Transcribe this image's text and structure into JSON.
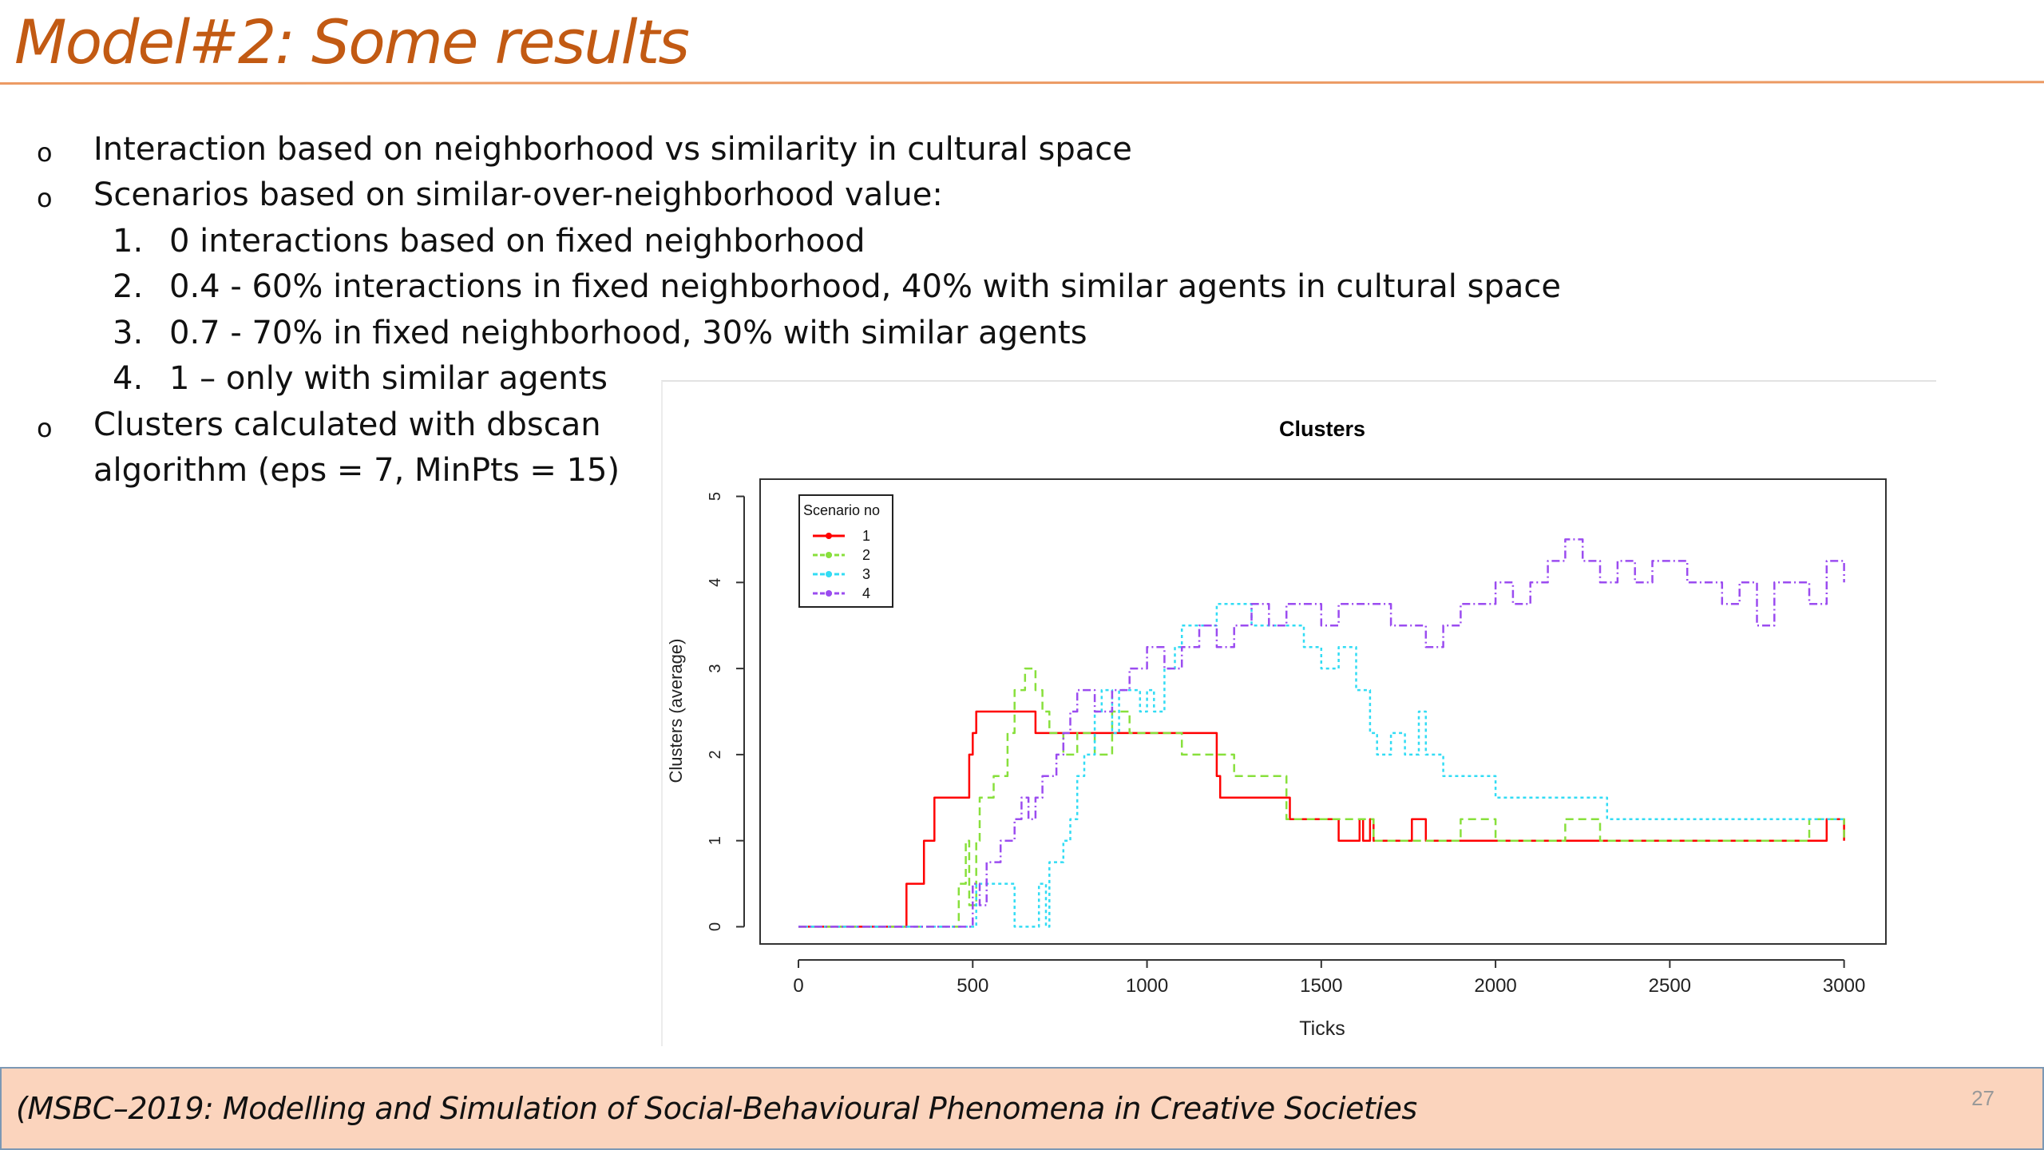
{
  "slide": {
    "title": "Model#2: Some results",
    "page_number": "27",
    "footer": "(MSBC–2019: Modelling and Simulation of Social-Behavioural Phenomena in Creative Societies"
  },
  "bullets": [
    {
      "marker": "o",
      "text": "Interaction based on neighborhood vs similarity in cultural space"
    },
    {
      "marker": "o",
      "text": "Scenarios based on similar-over-neighborhood value:"
    },
    {
      "marker": "1.",
      "text": "0  interactions based on fixed neighborhood"
    },
    {
      "marker": "2.",
      "text": "0.4 -  60% interactions in fixed neighborhood, 40% with similar agents in cultural space"
    },
    {
      "marker": "3.",
      "text": "0.7 -  70% in fixed neighborhood, 30% with similar agents"
    },
    {
      "marker": "4.",
      "text": "1 – only with similar agents"
    },
    {
      "marker": "o",
      "text": "Clusters calculated with dbscan"
    },
    {
      "marker": "",
      "text": "algorithm (eps = 7, MinPts = 15)"
    }
  ],
  "chart_data": {
    "type": "line",
    "title": "Clusters",
    "xlabel": "Ticks",
    "ylabel": "Clusters (average)",
    "xlim": [
      -110,
      3120
    ],
    "ylim": [
      -0.2,
      5.2
    ],
    "xticks": [
      "0",
      "500",
      "1000",
      "1500",
      "2000",
      "2500",
      "3000"
    ],
    "yticks": [
      "0",
      "1",
      "2",
      "3",
      "4",
      "5"
    ],
    "legend": {
      "title": "Scenario no",
      "position": "top-left"
    },
    "series": [
      {
        "name": "1",
        "color": "#ff0000",
        "dash": "none",
        "x": [
          0,
          300,
          310,
          350,
          360,
          380,
          390,
          400,
          460,
          480,
          490,
          500,
          510,
          590,
          620,
          660,
          680,
          800,
          850,
          900,
          1000,
          1100,
          1190,
          1200,
          1210,
          1400,
          1410,
          1500,
          1540,
          1550,
          1600,
          1610,
          1620,
          1630,
          1640,
          1650,
          1700,
          1750,
          1760,
          1800,
          1900,
          1950,
          2000,
          2100,
          2280,
          2400,
          2450,
          2500,
          2600,
          2700,
          2750,
          2760,
          2800,
          2900,
          2950,
          3000
        ],
        "y": [
          0,
          0,
          0.5,
          0.5,
          1,
          1,
          1.5,
          1.5,
          1.5,
          1.5,
          2,
          2.25,
          2.5,
          2.5,
          2.5,
          2.5,
          2.25,
          2.25,
          2.25,
          2.25,
          2.25,
          2.25,
          2.25,
          1.75,
          1.5,
          1.5,
          1.25,
          1.25,
          1.25,
          1.0,
          1.0,
          1.25,
          1.0,
          1.0,
          1.25,
          1.0,
          1.0,
          1.0,
          1.25,
          1.0,
          1.0,
          1.0,
          1.0,
          1.0,
          1.0,
          1.0,
          1.0,
          1.0,
          1.0,
          1.0,
          1.0,
          1.0,
          1.0,
          1.0,
          1.25,
          1.0
        ]
      },
      {
        "name": "2",
        "color": "#88e03c",
        "dash": "10 6",
        "x": [
          0,
          450,
          460,
          480,
          490,
          510,
          520,
          540,
          560,
          600,
          620,
          650,
          680,
          700,
          720,
          760,
          800,
          850,
          900,
          950,
          1000,
          1050,
          1100,
          1200,
          1250,
          1300,
          1350,
          1400,
          1450,
          1500,
          1550,
          1600,
          1650,
          1700,
          1750,
          1800,
          1850,
          1900,
          2000,
          2100,
          2200,
          2300,
          2400,
          2500,
          2600,
          2700,
          2800,
          2900,
          3000
        ],
        "y": [
          0,
          0,
          0.5,
          1.0,
          0.25,
          1.0,
          1.5,
          1.5,
          1.75,
          2.25,
          2.75,
          3.0,
          2.75,
          2.5,
          2.25,
          2.0,
          2.25,
          2.0,
          2.5,
          2.25,
          2.25,
          2.25,
          2.0,
          2.0,
          1.75,
          1.75,
          1.75,
          1.25,
          1.25,
          1.25,
          1.25,
          1.25,
          1.0,
          1.0,
          1.0,
          1.0,
          1.0,
          1.25,
          1.0,
          1.0,
          1.25,
          1.0,
          1.0,
          1.0,
          1.0,
          1.0,
          1.0,
          1.25,
          1.0
        ]
      },
      {
        "name": "3",
        "color": "#32dcf4",
        "dash": "4 4",
        "x": [
          0,
          500,
          510,
          540,
          560,
          600,
          620,
          680,
          690,
          710,
          720,
          760,
          780,
          800,
          820,
          850,
          870,
          900,
          920,
          950,
          980,
          1000,
          1020,
          1050,
          1080,
          1100,
          1150,
          1200,
          1250,
          1300,
          1350,
          1400,
          1450,
          1500,
          1550,
          1600,
          1640,
          1660,
          1700,
          1740,
          1780,
          1800,
          1850,
          1900,
          1950,
          2000,
          2100,
          2200,
          2300,
          2320,
          2340,
          2400,
          2500,
          2600,
          2700,
          2800,
          2900,
          3000
        ],
        "y": [
          0,
          0,
          0.5,
          0.5,
          0.5,
          0.5,
          0,
          0,
          0.5,
          0,
          0.75,
          1.0,
          1.25,
          1.75,
          2.0,
          2.5,
          2.75,
          2.25,
          2.75,
          2.75,
          2.5,
          2.75,
          2.5,
          3.0,
          3.25,
          3.5,
          3.5,
          3.75,
          3.75,
          3.5,
          3.5,
          3.5,
          3.25,
          3.0,
          3.25,
          2.75,
          2.25,
          2.0,
          2.25,
          2.0,
          2.5,
          2.0,
          1.75,
          1.75,
          1.75,
          1.5,
          1.5,
          1.5,
          1.5,
          1.25,
          1.25,
          1.25,
          1.25,
          1.25,
          1.25,
          1.25,
          1.25,
          1.25
        ]
      },
      {
        "name": "4",
        "color": "#9b4cf0",
        "dash": "10 4 2 4",
        "x": [
          0,
          490,
          500,
          520,
          540,
          580,
          600,
          620,
          640,
          660,
          680,
          700,
          740,
          760,
          780,
          800,
          850,
          900,
          950,
          1000,
          1050,
          1100,
          1150,
          1200,
          1250,
          1300,
          1350,
          1400,
          1450,
          1500,
          1550,
          1600,
          1650,
          1700,
          1750,
          1800,
          1850,
          1900,
          1950,
          2000,
          2050,
          2100,
          2150,
          2200,
          2250,
          2300,
          2350,
          2400,
          2450,
          2500,
          2550,
          2600,
          2650,
          2700,
          2750,
          2800,
          2850,
          2900,
          2950,
          3000
        ],
        "y": [
          0,
          0,
          0.5,
          0.25,
          0.75,
          1.0,
          1.0,
          1.25,
          1.5,
          1.25,
          1.5,
          1.75,
          2.0,
          2.25,
          2.5,
          2.75,
          2.5,
          2.75,
          3.0,
          3.25,
          3.0,
          3.25,
          3.5,
          3.25,
          3.5,
          3.75,
          3.5,
          3.75,
          3.75,
          3.5,
          3.75,
          3.75,
          3.75,
          3.5,
          3.5,
          3.25,
          3.5,
          3.75,
          3.75,
          4.0,
          3.75,
          4.0,
          4.25,
          4.5,
          4.25,
          4.0,
          4.25,
          4.0,
          4.25,
          4.25,
          4.0,
          4.0,
          3.75,
          4.0,
          3.5,
          4.0,
          4.0,
          3.75,
          4.25,
          4.0
        ]
      }
    ]
  }
}
